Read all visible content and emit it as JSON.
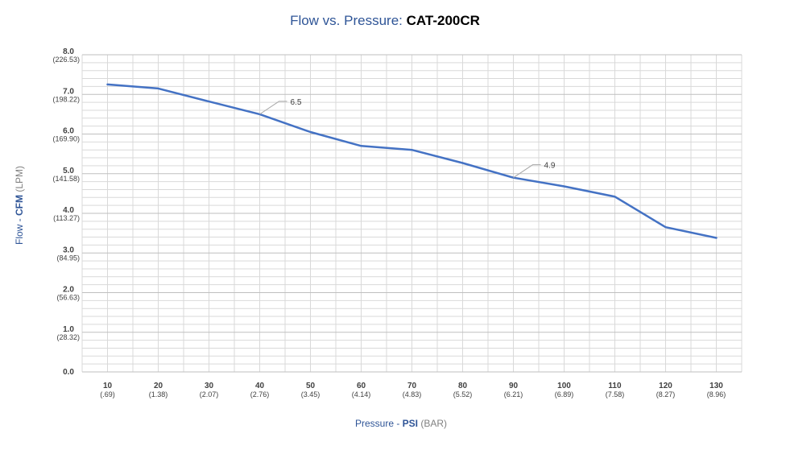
{
  "chart_data": {
    "type": "line",
    "title": "Flow vs. Pressure:",
    "subtitle": "CAT-200CR",
    "xlabel": {
      "prefix": "Pressure - ",
      "bold": "PSI",
      "suffix": " (BAR)"
    },
    "ylabel": {
      "prefix": "Flow - ",
      "bold": "CFM",
      "suffix": " (LPM)"
    },
    "x": [
      10,
      20,
      30,
      40,
      50,
      60,
      70,
      80,
      90,
      100,
      110,
      120,
      130
    ],
    "x_tick_labels": [
      {
        "main": "10",
        "sub": "(.69)"
      },
      {
        "main": "20",
        "sub": "(1.38)"
      },
      {
        "main": "30",
        "sub": "(2.07)"
      },
      {
        "main": "40",
        "sub": "(2.76)"
      },
      {
        "main": "50",
        "sub": "(3.45)"
      },
      {
        "main": "60",
        "sub": "(4.14)"
      },
      {
        "main": "70",
        "sub": "(4.83)"
      },
      {
        "main": "80",
        "sub": "(5.52)"
      },
      {
        "main": "90",
        "sub": "(6.21)"
      },
      {
        "main": "100",
        "sub": "(6.89)"
      },
      {
        "main": "110",
        "sub": "(7.58)"
      },
      {
        "main": "120",
        "sub": "(8.27)"
      },
      {
        "main": "130",
        "sub": "(8.96)"
      }
    ],
    "y_tick_labels": [
      {
        "value": 0,
        "main": "0.0",
        "sub": ""
      },
      {
        "value": 1,
        "main": "1.0",
        "sub": "(28.32)"
      },
      {
        "value": 2,
        "main": "2.0",
        "sub": "(56.63)"
      },
      {
        "value": 3,
        "main": "3.0",
        "sub": "(84.95)"
      },
      {
        "value": 4,
        "main": "4.0",
        "sub": "(113.27)"
      },
      {
        "value": 5,
        "main": "5.0",
        "sub": "(141.58)"
      },
      {
        "value": 6,
        "main": "6.0",
        "sub": "(169.90)"
      },
      {
        "value": 7,
        "main": "7.0",
        "sub": "(198.22)"
      },
      {
        "value": 8,
        "main": "8.0",
        "sub": "(226.53)"
      }
    ],
    "series": [
      {
        "values": [
          7.25,
          7.15,
          6.82,
          6.5,
          6.05,
          5.7,
          5.6,
          5.27,
          4.9,
          4.68,
          4.42,
          3.65,
          3.38
        ]
      }
    ],
    "annotations": [
      {
        "x": 40,
        "y": 6.5,
        "text": "6.5"
      },
      {
        "x": 90,
        "y": 4.9,
        "text": "4.9"
      }
    ],
    "xlim": [
      5,
      135
    ],
    "ylim": [
      0,
      8
    ],
    "y_minor_step": 0.2,
    "grid": true,
    "line_color": "#4472c4",
    "grid_color": "#d9d9d9",
    "major_grid_color": "#bfbfbf"
  }
}
